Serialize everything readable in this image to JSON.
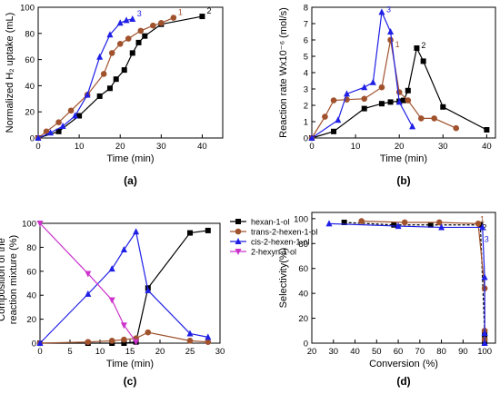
{
  "chart_data": [
    {
      "id": "a",
      "type": "line",
      "panel_label": "(a)",
      "title": "",
      "xlabel": "Time (min)",
      "ylabel": "Normalized H₂ uptake (mL)",
      "xlim": [
        0,
        45
      ],
      "ylim": [
        0,
        100
      ],
      "xticks": [
        0,
        10,
        20,
        30,
        40
      ],
      "yticks": [
        0,
        20,
        40,
        60,
        80,
        100
      ],
      "grid": false,
      "series": [
        {
          "name": "2",
          "color": "#000000",
          "marker": "square",
          "x": [
            0,
            5,
            10,
            15,
            17.5,
            19,
            21,
            23,
            24.5,
            26,
            30,
            40
          ],
          "y": [
            0,
            5,
            17,
            32,
            38,
            45,
            52,
            65,
            73,
            78,
            87,
            93
          ]
        },
        {
          "name": "1",
          "color": "#a0522d",
          "marker": "circle",
          "x": [
            0,
            2,
            5,
            8,
            12,
            16,
            18,
            20,
            22,
            25,
            28,
            30,
            33
          ],
          "y": [
            0,
            5,
            12,
            21,
            33,
            49,
            65,
            72,
            76,
            82,
            86,
            88,
            92
          ]
        },
        {
          "name": "3",
          "color": "#1f1fe6",
          "marker": "triangle",
          "x": [
            0,
            3,
            6,
            9,
            12,
            15,
            17.5,
            20,
            21.5,
            23
          ],
          "y": [
            0,
            4,
            9,
            17,
            33,
            62,
            79,
            88,
            90,
            91
          ]
        }
      ]
    },
    {
      "id": "b",
      "type": "line",
      "panel_label": "(b)",
      "title": "",
      "xlabel": "Time (min)",
      "ylabel": "Reaction rate Wx10⁻⁶ (mol/s)",
      "xlim": [
        0,
        42
      ],
      "ylim": [
        0,
        8
      ],
      "xticks": [
        0,
        10,
        20,
        30,
        40
      ],
      "yticks": [
        0,
        1,
        2,
        3,
        4,
        5,
        6,
        7,
        8
      ],
      "grid": false,
      "series": [
        {
          "name": "2",
          "color": "#000000",
          "marker": "square",
          "x": [
            0,
            5,
            12,
            16,
            18,
            20,
            21,
            22,
            24,
            25.5,
            30,
            40
          ],
          "y": [
            0,
            0.4,
            1.8,
            2.1,
            2.2,
            2.25,
            2.3,
            2.9,
            5.5,
            4.7,
            1.9,
            0.5
          ]
        },
        {
          "name": "1",
          "color": "#a0522d",
          "marker": "circle",
          "x": [
            0,
            3,
            5,
            8,
            12,
            16,
            18,
            20,
            22,
            25,
            28,
            33
          ],
          "y": [
            0,
            1.3,
            2.3,
            2.35,
            2.4,
            3.1,
            6.0,
            2.8,
            2.3,
            1.2,
            1.2,
            0.6
          ]
        },
        {
          "name": "3",
          "color": "#1f1fe6",
          "marker": "triangle",
          "x": [
            0,
            6,
            8,
            12,
            14,
            16,
            18,
            20,
            23
          ],
          "y": [
            0,
            1.1,
            2.7,
            3.1,
            3.4,
            7.7,
            6.5,
            2.2,
            0.7
          ]
        }
      ]
    },
    {
      "id": "c",
      "type": "line",
      "panel_label": "(c)",
      "title": "",
      "xlabel": "Time (min)",
      "ylabel": "Composition of the reaction mixture (%)",
      "xlim": [
        0,
        30
      ],
      "ylim": [
        0,
        100
      ],
      "xticks": [
        0,
        5,
        10,
        15,
        20,
        25,
        30
      ],
      "yticks": [
        0,
        20,
        40,
        60,
        80,
        100
      ],
      "grid": false,
      "legend_position": "top-right",
      "series": [
        {
          "name": "hexan-1-ol",
          "color": "#000000",
          "marker": "square",
          "x": [
            0,
            8,
            12,
            14,
            16,
            18,
            25,
            28
          ],
          "y": [
            0,
            0,
            0,
            0,
            1,
            46,
            92,
            94
          ]
        },
        {
          "name": "trans-2-hexen-1-ol",
          "color": "#a0522d",
          "marker": "circle",
          "x": [
            0,
            8,
            12,
            14,
            16,
            18,
            25,
            28
          ],
          "y": [
            0,
            1,
            2,
            3,
            4,
            9,
            2,
            1
          ]
        },
        {
          "name": "cis-2-hexen-1-ol",
          "color": "#1f1fe6",
          "marker": "triangle",
          "x": [
            0,
            8,
            12,
            14,
            16,
            18,
            25,
            28
          ],
          "y": [
            0,
            41,
            62,
            78,
            93,
            44,
            8,
            5
          ]
        },
        {
          "name": "2-hexyn-1-ol",
          "color": "#cc33cc",
          "marker": "triangle-down",
          "x": [
            0,
            8,
            12,
            14,
            16
          ],
          "y": [
            100,
            58,
            36,
            15,
            1
          ]
        }
      ]
    },
    {
      "id": "d",
      "type": "line",
      "panel_label": "(d)",
      "title": "",
      "xlabel": "Conversion (%)",
      "ylabel": "Selectivity(%)",
      "xlim": [
        20,
        105
      ],
      "ylim": [
        0,
        105
      ],
      "xticks": [
        20,
        30,
        40,
        50,
        60,
        70,
        80,
        90,
        100
      ],
      "yticks": [
        0,
        20,
        40,
        60,
        80,
        100
      ],
      "grid": false,
      "series": [
        {
          "name": "2",
          "color": "#000000",
          "marker": "square",
          "x": [
            35,
            58,
            75,
            98,
            100,
            100,
            100
          ],
          "y": [
            97,
            95,
            95,
            95,
            9,
            5,
            1
          ]
        },
        {
          "name": "1",
          "color": "#a0522d",
          "marker": "circle",
          "x": [
            43,
            63,
            79,
            97,
            100,
            100,
            100
          ],
          "y": [
            98,
            97,
            97,
            96,
            44,
            10,
            3
          ]
        },
        {
          "name": "3",
          "color": "#1f1fe6",
          "marker": "triangle",
          "x": [
            28,
            60,
            80,
            99,
            100,
            100,
            100
          ],
          "y": [
            96,
            94,
            93,
            93,
            53,
            8,
            0
          ]
        }
      ]
    }
  ]
}
